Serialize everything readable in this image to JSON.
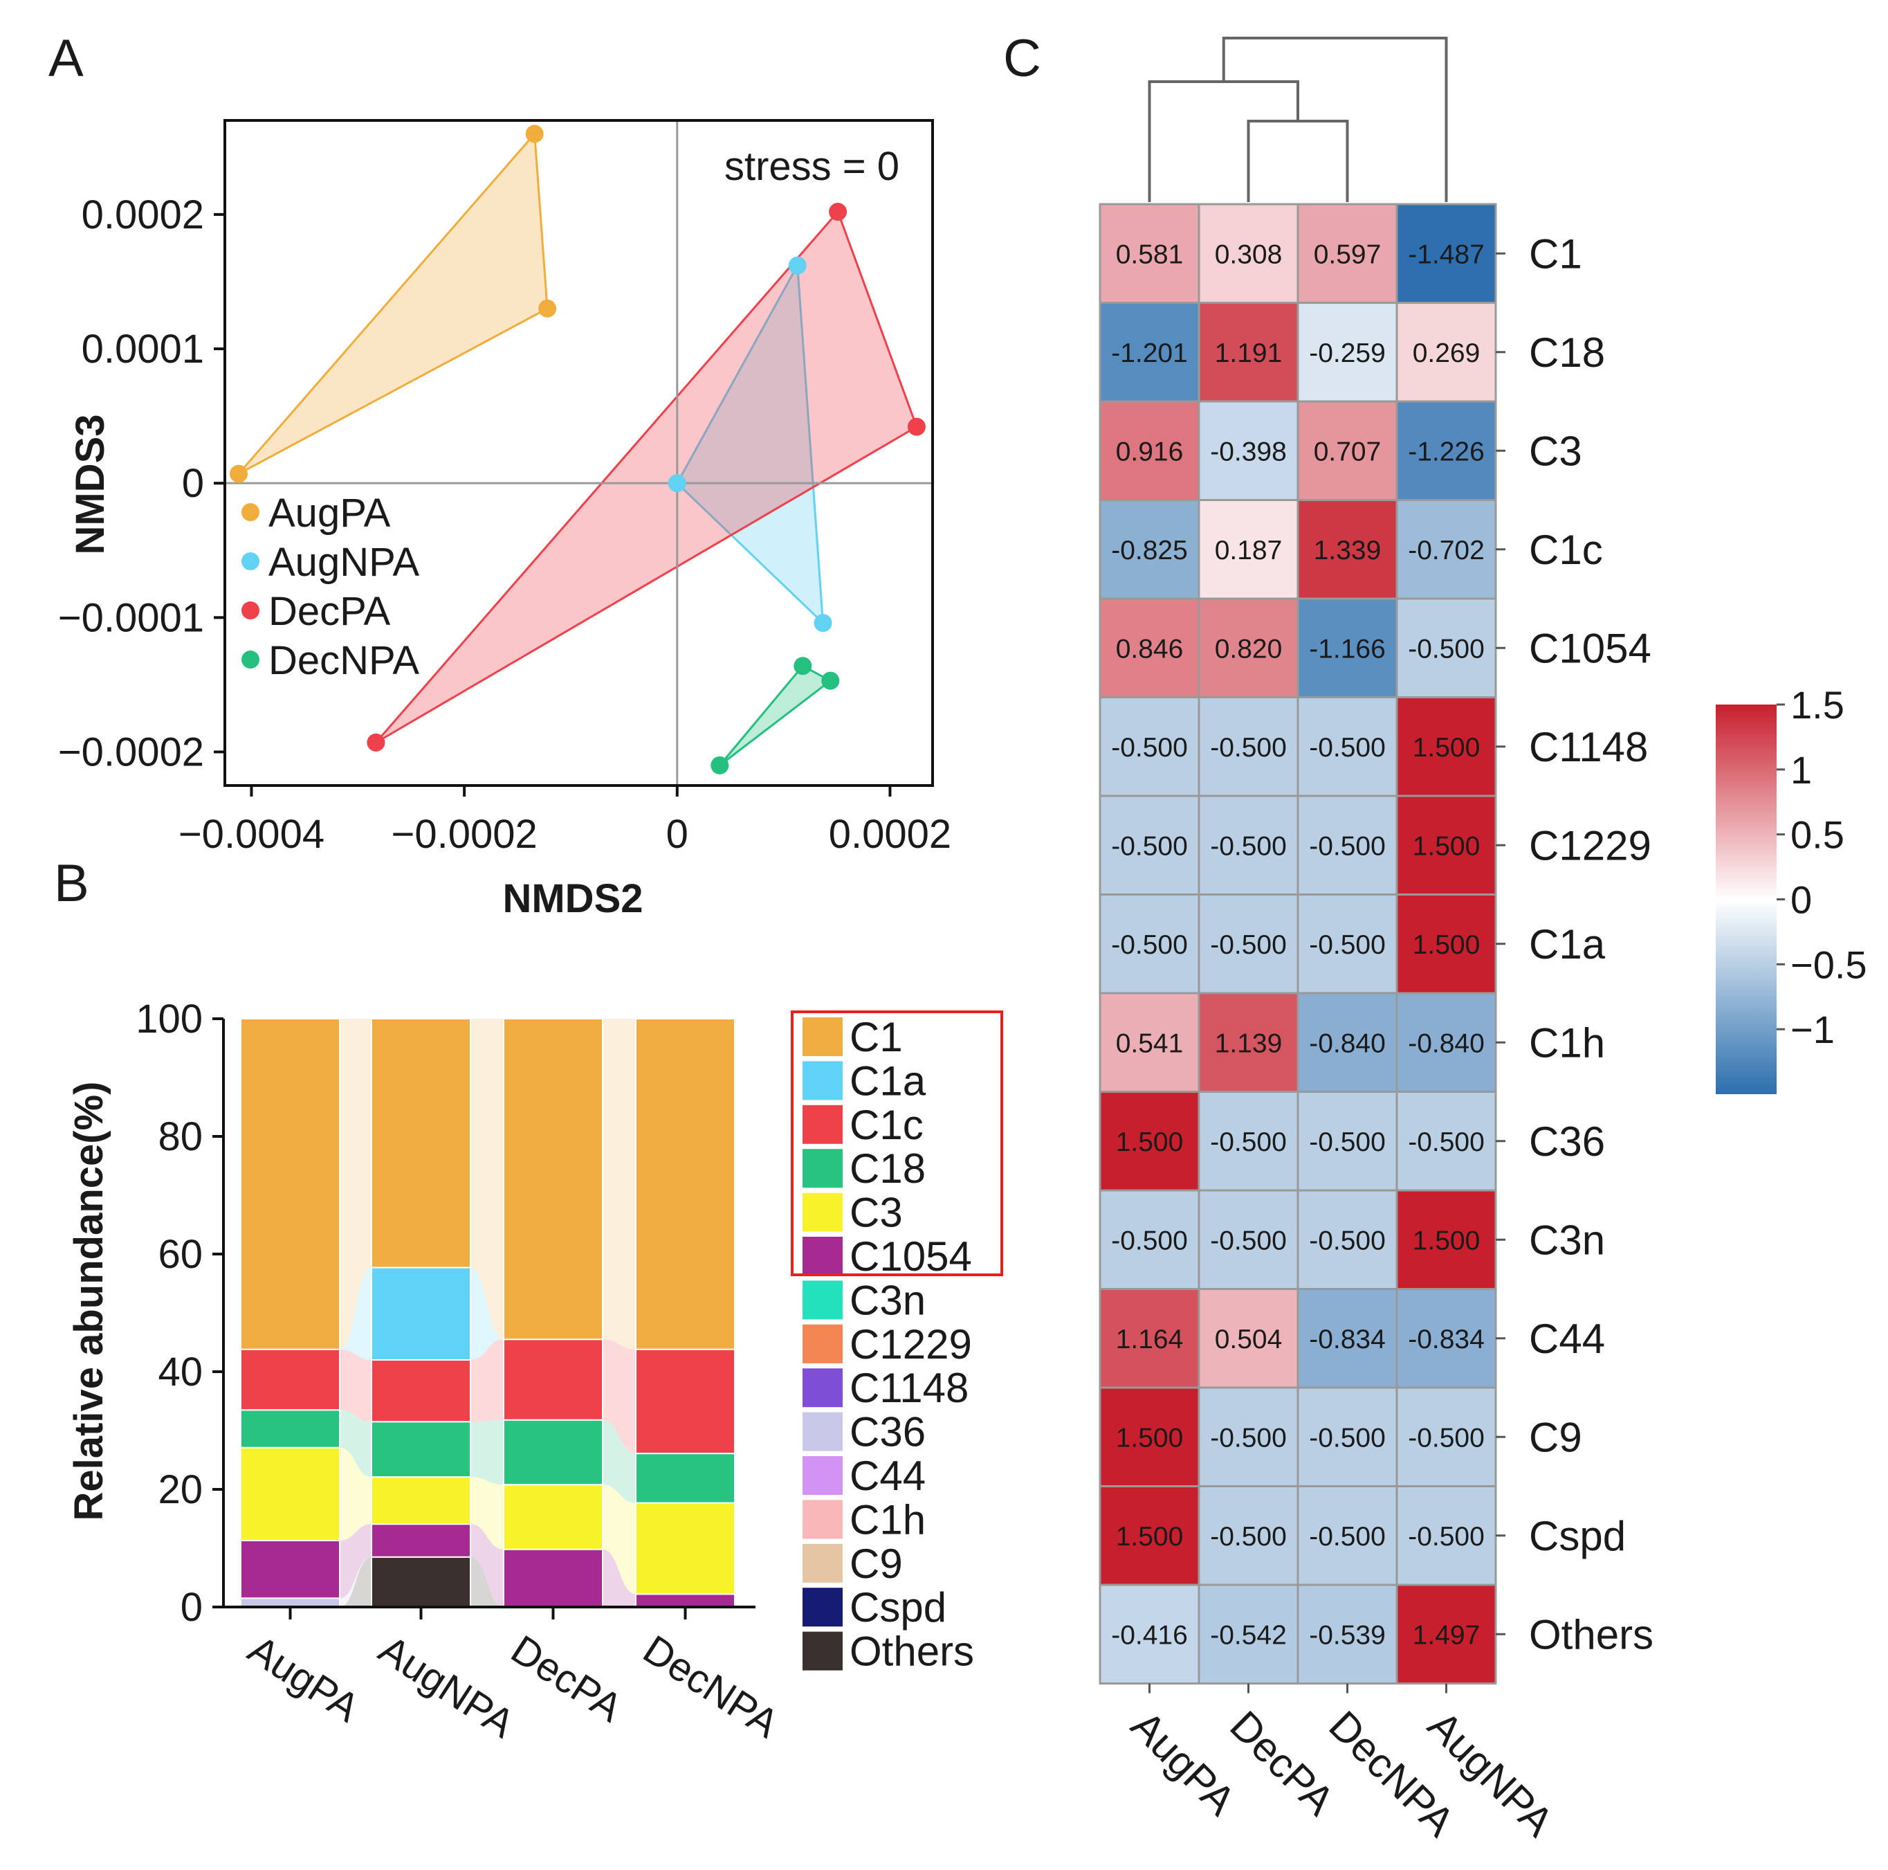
{
  "panels": {
    "a": "A",
    "b": "B",
    "c": "C"
  },
  "colors": {
    "AugPA": "#f0ad3c",
    "AugNPA": "#62d2f3",
    "DecPA": "#ef414b",
    "DecNPA": "#24c080",
    "C1": "#efad41",
    "C1a": "#60d2f5",
    "C1c": "#ef4149",
    "C18": "#27c480",
    "C3": "#f8f22b",
    "C1054": "#a62a92",
    "C3n": "#22e2bd",
    "C1229": "#f38552",
    "C1148": "#7e4fd6",
    "C36": "#c9c8e8",
    "C44": "#d393f4",
    "C1h": "#f8b7b9",
    "C9": "#e6c5a5",
    "Cspd": "#151b72",
    "Others": "#3a302d",
    "highlight": "#e8201e"
  },
  "chart_data": [
    {
      "type": "scatter",
      "panel": "A",
      "title": "",
      "annotation": "stress = 0",
      "xlabel": "NMDS2",
      "ylabel": "NMDS3",
      "xlim": [
        -0.000425,
        0.00024
      ],
      "ylim": [
        -0.000225,
        0.00027
      ],
      "xticks": [
        -0.0004,
        -0.0002,
        0,
        0.0002
      ],
      "xtick_labels": [
        "−0.0004",
        "−0.0002",
        "0",
        "0.0002"
      ],
      "yticks": [
        0.0002,
        0.0001,
        0,
        -0.0001,
        -0.0002
      ],
      "ytick_labels": [
        "0.0002",
        "0.0001",
        "0",
        "−0.0001",
        "−0.0002"
      ],
      "legend_position": "left",
      "series": [
        {
          "name": "AugPA",
          "points": [
            [
              -0.000412,
              7e-06
            ],
            [
              -0.000134,
              0.00026
            ],
            [
              -0.000122,
              0.00013
            ]
          ]
        },
        {
          "name": "AugNPA",
          "points": [
            [
              0.0,
              0.0
            ],
            [
              0.000113,
              0.000162
            ],
            [
              0.000137,
              -0.000104
            ]
          ]
        },
        {
          "name": "DecPA",
          "points": [
            [
              -0.000283,
              -0.000193
            ],
            [
              0.000151,
              0.000202
            ],
            [
              0.000225,
              4.2e-05
            ]
          ]
        },
        {
          "name": "DecNPA",
          "points": [
            [
              4e-05,
              -0.00021
            ],
            [
              0.000118,
              -0.000136
            ],
            [
              0.000144,
              -0.000147
            ]
          ]
        }
      ]
    },
    {
      "type": "bar",
      "stacked": true,
      "panel": "B",
      "title": "",
      "xlabel": "",
      "ylabel": "Relative abundance(%)",
      "ylim": [
        0,
        100
      ],
      "yticks": [
        0,
        20,
        40,
        60,
        80,
        100
      ],
      "categories": [
        "AugPA",
        "AugNPA",
        "DecPA",
        "DecNPA"
      ],
      "legend": [
        "C1",
        "C1a",
        "C1c",
        "C18",
        "C3",
        "C1054",
        "C3n",
        "C1229",
        "C1148",
        "C36",
        "C44",
        "C1h",
        "C9",
        "Cspd",
        "Others"
      ],
      "highlighted_legend_items": [
        "C1",
        "C1a",
        "C1c",
        "C18",
        "C3",
        "C1054"
      ],
      "series": [
        {
          "name": "Others",
          "values": [
            0,
            8.5,
            0,
            0
          ]
        },
        {
          "name": "C36",
          "values": [
            1.5,
            0,
            0,
            0
          ]
        },
        {
          "name": "C1054",
          "values": [
            9.8,
            5.6,
            9.8,
            2.2
          ]
        },
        {
          "name": "C3",
          "values": [
            15.8,
            8.0,
            11.0,
            15.5
          ]
        },
        {
          "name": "C18",
          "values": [
            6.4,
            9.4,
            11.0,
            8.4
          ]
        },
        {
          "name": "C1c",
          "values": [
            10.3,
            10.5,
            13.7,
            17.7
          ]
        },
        {
          "name": "C1a",
          "values": [
            0,
            15.7,
            0,
            0
          ]
        },
        {
          "name": "C1",
          "values": [
            56.2,
            42.3,
            54.5,
            56.2
          ]
        }
      ]
    },
    {
      "type": "heatmap",
      "panel": "C",
      "title": "",
      "columns": [
        "AugPA",
        "DecPA",
        "DecNPA",
        "AugNPA"
      ],
      "rows": [
        "C1",
        "C18",
        "C3",
        "C1c",
        "C1054",
        "C1148",
        "C1229",
        "C1a",
        "C1h",
        "C36",
        "C3n",
        "C44",
        "C9",
        "Cspd",
        "Others"
      ],
      "values": [
        [
          0.581,
          0.308,
          0.597,
          -1.487
        ],
        [
          -1.201,
          1.191,
          -0.259,
          0.269
        ],
        [
          0.916,
          -0.398,
          0.707,
          -1.226
        ],
        [
          -0.825,
          0.187,
          1.339,
          -0.702
        ],
        [
          0.846,
          0.82,
          -1.166,
          -0.5
        ],
        [
          -0.5,
          -0.5,
          -0.5,
          1.5
        ],
        [
          -0.5,
          -0.5,
          -0.5,
          1.5
        ],
        [
          -0.5,
          -0.5,
          -0.5,
          1.5
        ],
        [
          0.541,
          1.139,
          -0.84,
          -0.84
        ],
        [
          1.5,
          -0.5,
          -0.5,
          -0.5
        ],
        [
          -0.5,
          -0.5,
          -0.5,
          1.5
        ],
        [
          1.164,
          0.504,
          -0.834,
          -0.834
        ],
        [
          1.5,
          -0.5,
          -0.5,
          -0.5
        ],
        [
          1.5,
          -0.5,
          -0.5,
          -0.5
        ],
        [
          -0.416,
          -0.542,
          -0.539,
          1.497
        ]
      ],
      "value_labels": [
        [
          "0.581",
          "0.308",
          "0.597",
          "-1.487"
        ],
        [
          "-1.201",
          "1.191",
          "-0.259",
          "0.269"
        ],
        [
          "0.916",
          "-0.398",
          "0.707",
          "-1.226"
        ],
        [
          "-0.825",
          "0.187",
          "1.339",
          "-0.702"
        ],
        [
          "0.846",
          "0.820",
          "-1.166",
          "-0.500"
        ],
        [
          "-0.500",
          "-0.500",
          "-0.500",
          "1.500"
        ],
        [
          "-0.500",
          "-0.500",
          "-0.500",
          "1.500"
        ],
        [
          "-0.500",
          "-0.500",
          "-0.500",
          "1.500"
        ],
        [
          "0.541",
          "1.139",
          "-0.840",
          "-0.840"
        ],
        [
          "1.500",
          "-0.500",
          "-0.500",
          "-0.500"
        ],
        [
          "-0.500",
          "-0.500",
          "-0.500",
          "1.500"
        ],
        [
          "1.164",
          "0.504",
          "-0.834",
          "-0.834"
        ],
        [
          "1.500",
          "-0.500",
          "-0.500",
          "-0.500"
        ],
        [
          "1.500",
          "-0.500",
          "-0.500",
          "-0.500"
        ],
        [
          "-0.416",
          "-0.542",
          "-0.539",
          "1.497"
        ]
      ],
      "colorbar": {
        "min": -1.5,
        "max": 1.5,
        "ticks": [
          1.5,
          1,
          0.5,
          0,
          -0.5,
          -1
        ],
        "tick_labels": [
          "1.5",
          "1",
          "0.5",
          "0",
          "−0.5",
          "−1"
        ],
        "colors": [
          "#2c6fae",
          "#ffffff",
          "#c81f2e"
        ]
      },
      "dendrogram": "((AugPA,(DecPA,DecNPA)),AugNPA)"
    }
  ]
}
